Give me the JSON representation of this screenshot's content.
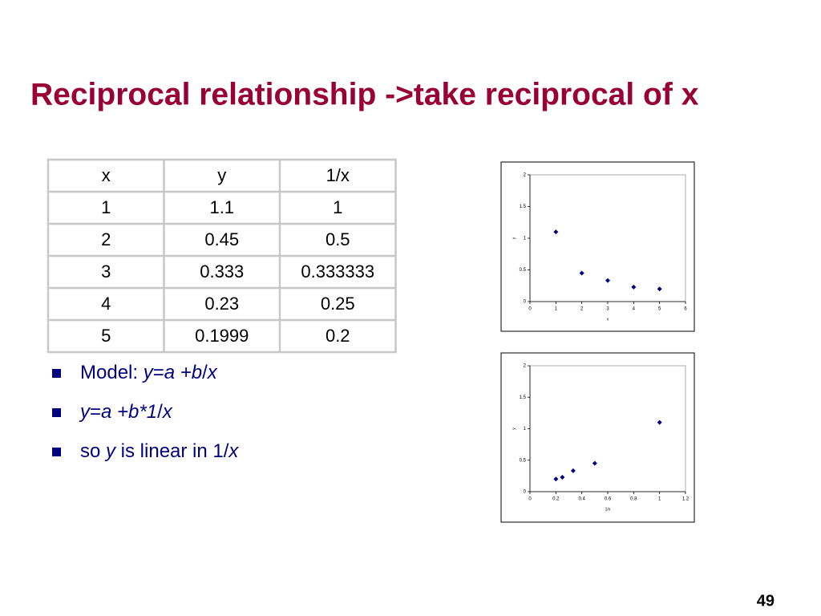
{
  "title": "Reciprocal relationship ->take reciprocal of x",
  "table": {
    "header": [
      "x",
      "y",
      "1/x"
    ],
    "rows": [
      [
        1,
        1.1,
        1
      ],
      [
        2,
        0.45,
        0.5
      ],
      [
        3,
        0.333,
        0.333333
      ],
      [
        4,
        0.23,
        0.25
      ],
      [
        5,
        0.1999,
        0.2
      ]
    ]
  },
  "bullets": [
    {
      "runs": [
        {
          "text": "Model: "
        },
        {
          "text": "y",
          "style": "italic"
        },
        {
          "text": "="
        },
        {
          "text": "a +b",
          "style": "italic"
        },
        {
          "text": "/"
        },
        {
          "text": "x",
          "style": "italic"
        }
      ]
    },
    {
      "runs": [
        {
          "text": "y",
          "style": "italic"
        },
        {
          "text": "="
        },
        {
          "text": "a +b*1",
          "style": "italic"
        },
        {
          "text": "/"
        },
        {
          "text": "x",
          "style": "italic"
        }
      ]
    },
    {
      "runs": [
        {
          "text": "so "
        },
        {
          "text": "y",
          "style": "italic"
        },
        {
          "text": " is linear in 1/"
        },
        {
          "text": "x",
          "style": "italic"
        }
      ]
    }
  ],
  "chart_data": [
    {
      "type": "scatter",
      "x_label": "x",
      "y_label": "y",
      "color": "#000080",
      "x": [
        1,
        2,
        3,
        4,
        5
      ],
      "y": [
        1.1,
        0.45,
        0.333,
        0.23,
        0.1999
      ],
      "xlim": [
        0,
        6
      ],
      "xticks": [
        0,
        1,
        2,
        3,
        4,
        5,
        6
      ],
      "ylim": [
        0,
        2
      ],
      "yticks": [
        0,
        0.5,
        1,
        1.5,
        2
      ]
    },
    {
      "type": "scatter",
      "x_label": "1/x",
      "y_label": "y",
      "color": "#000080",
      "x": [
        1,
        0.5,
        0.333333,
        0.25,
        0.2
      ],
      "y": [
        1.1,
        0.45,
        0.333,
        0.23,
        0.1999
      ],
      "xlim": [
        0,
        1.2
      ],
      "xticks": [
        0,
        0.2,
        0.4,
        0.6,
        0.8,
        1,
        1.2
      ],
      "ylim": [
        0,
        2
      ],
      "yticks": [
        0,
        0.5,
        1,
        1.5,
        2
      ]
    }
  ],
  "page_number": "49"
}
